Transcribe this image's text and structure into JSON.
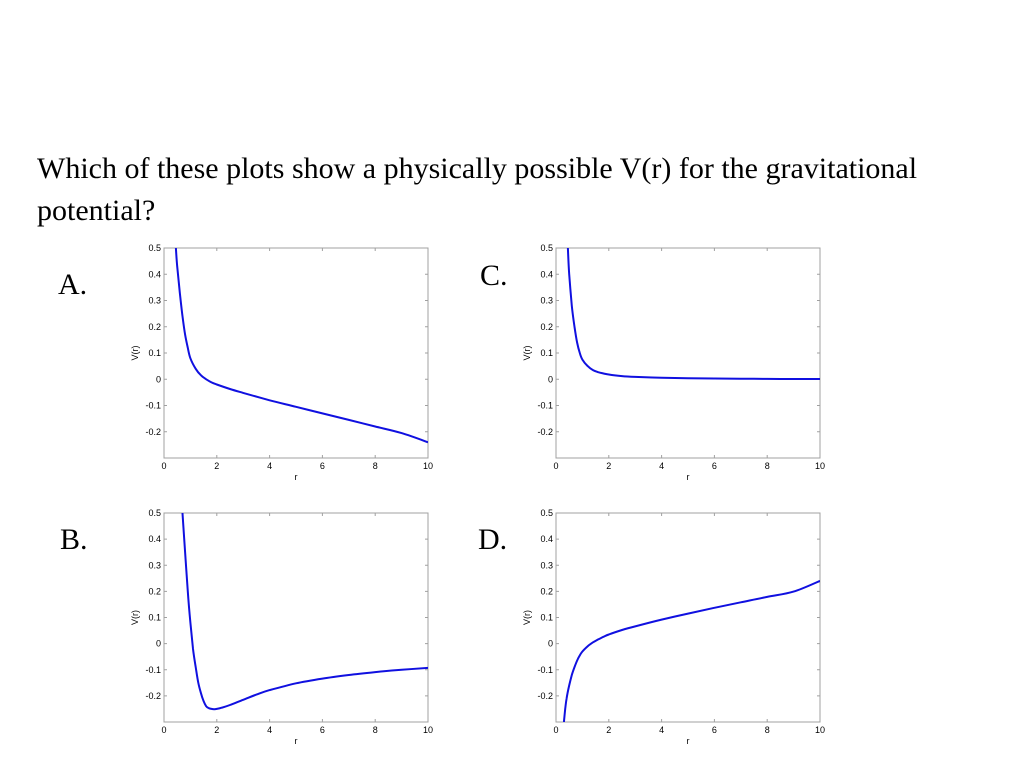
{
  "slide": {
    "question": "Which of these plots show a physically possible V(r) for the gravitational potential?"
  },
  "panels": [
    {
      "letter": "A."
    },
    {
      "letter": "B."
    },
    {
      "letter": "C."
    },
    {
      "letter": "D."
    }
  ],
  "colors": {
    "curve": "#1010e0",
    "frame": "#a0a0a0"
  },
  "chart_data": [
    {
      "type": "line",
      "panel": "A.",
      "xlabel": "r",
      "ylabel": "V(r)",
      "xlim": [
        0,
        10
      ],
      "ylim": [
        -0.3,
        0.5
      ],
      "xticks": [
        "0",
        "2",
        "4",
        "6",
        "8",
        "10"
      ],
      "yticks": [
        "-0.2",
        "-0.1",
        "0",
        "0.1",
        "0.2",
        "0.3",
        "0.4",
        "0.5"
      ],
      "grid": false,
      "series": [
        {
          "x": [
            0.45,
            0.5,
            0.6,
            0.7,
            0.8,
            0.9,
            1.0,
            1.2,
            1.4,
            1.6,
            1.8,
            2.0,
            2.5,
            3.0,
            4.0,
            5.0,
            6.0,
            7.0,
            8.0,
            9.0,
            10.0
          ],
          "y": [
            0.5,
            0.43,
            0.33,
            0.24,
            0.17,
            0.12,
            0.08,
            0.04,
            0.015,
            0.0,
            -0.012,
            -0.02,
            -0.037,
            -0.052,
            -0.08,
            -0.105,
            -0.13,
            -0.155,
            -0.18,
            -0.205,
            -0.24
          ]
        }
      ]
    },
    {
      "type": "line",
      "panel": "B.",
      "xlabel": "r",
      "ylabel": "V(r)",
      "xlim": [
        0,
        10
      ],
      "ylim": [
        -0.3,
        0.5
      ],
      "xticks": [
        "0",
        "2",
        "4",
        "6",
        "8",
        "10"
      ],
      "yticks": [
        "-0.2",
        "-0.1",
        "0",
        "0.1",
        "0.2",
        "0.3",
        "0.4",
        "0.5"
      ],
      "grid": false,
      "series": [
        {
          "x": [
            0.7,
            0.8,
            0.9,
            1.0,
            1.1,
            1.2,
            1.3,
            1.4,
            1.5,
            1.6,
            1.7,
            1.8,
            1.9,
            2.0,
            2.2,
            2.5,
            3.0,
            3.5,
            4.0,
            5.0,
            6.0,
            7.0,
            8.0,
            9.0,
            10.0
          ],
          "y": [
            0.5,
            0.35,
            0.2,
            0.08,
            -0.02,
            -0.09,
            -0.15,
            -0.19,
            -0.22,
            -0.24,
            -0.247,
            -0.25,
            -0.251,
            -0.25,
            -0.245,
            -0.235,
            -0.215,
            -0.195,
            -0.178,
            -0.152,
            -0.134,
            -0.12,
            -0.109,
            -0.1,
            -0.093
          ]
        }
      ]
    },
    {
      "type": "line",
      "panel": "C.",
      "xlabel": "r",
      "ylabel": "V(r)",
      "xlim": [
        0,
        10
      ],
      "ylim": [
        -0.3,
        0.5
      ],
      "xticks": [
        "0",
        "2",
        "4",
        "6",
        "8",
        "10"
      ],
      "yticks": [
        "-0.2",
        "-0.1",
        "0",
        "0.1",
        "0.2",
        "0.3",
        "0.4",
        "0.5"
      ],
      "grid": false,
      "series": [
        {
          "x": [
            0.45,
            0.5,
            0.6,
            0.7,
            0.8,
            0.9,
            1.0,
            1.2,
            1.4,
            1.6,
            1.8,
            2.0,
            2.5,
            3.0,
            4.0,
            5.0,
            6.0,
            7.0,
            8.0,
            9.0,
            10.0
          ],
          "y": [
            0.5,
            0.4,
            0.28,
            0.2,
            0.14,
            0.1,
            0.075,
            0.05,
            0.035,
            0.027,
            0.022,
            0.018,
            0.012,
            0.009,
            0.006,
            0.004,
            0.003,
            0.002,
            0.0015,
            0.001,
            0.001
          ]
        }
      ]
    },
    {
      "type": "line",
      "panel": "D.",
      "xlabel": "r",
      "ylabel": "V(r)",
      "xlim": [
        0,
        10
      ],
      "ylim": [
        -0.3,
        0.5
      ],
      "xticks": [
        "0",
        "2",
        "4",
        "6",
        "8",
        "10"
      ],
      "yticks": [
        "-0.2",
        "-0.1",
        "0",
        "0.1",
        "0.2",
        "0.3",
        "0.4",
        "0.5"
      ],
      "grid": false,
      "series": [
        {
          "x": [
            0.3,
            0.35,
            0.4,
            0.5,
            0.6,
            0.7,
            0.8,
            0.9,
            1.0,
            1.2,
            1.4,
            1.6,
            1.8,
            2.0,
            2.5,
            3.0,
            4.0,
            5.0,
            6.0,
            7.0,
            8.0,
            9.0,
            10.0
          ],
          "y": [
            -0.3,
            -0.25,
            -0.21,
            -0.16,
            -0.12,
            -0.09,
            -0.065,
            -0.045,
            -0.03,
            -0.01,
            0.005,
            0.016,
            0.026,
            0.035,
            0.052,
            0.066,
            0.092,
            0.115,
            0.137,
            0.158,
            0.179,
            0.199,
            0.24
          ]
        }
      ]
    }
  ]
}
